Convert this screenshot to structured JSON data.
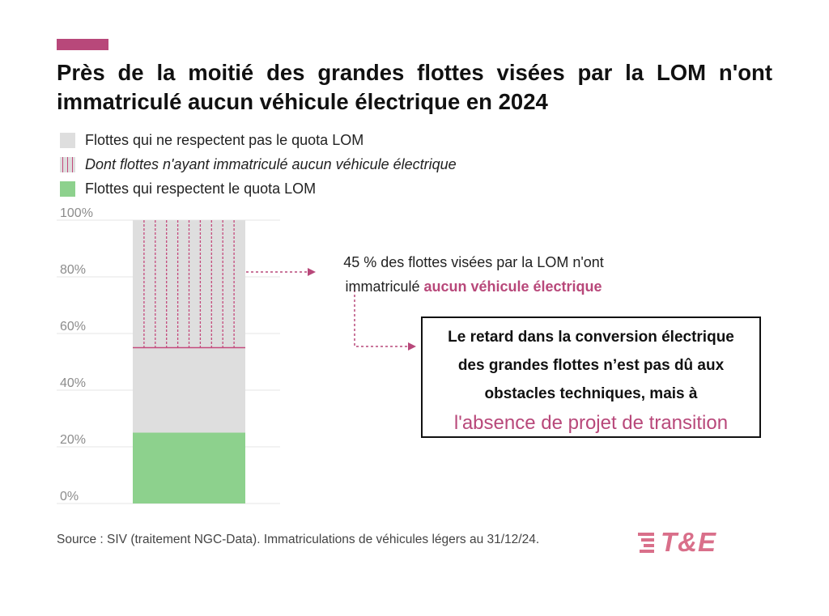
{
  "title": "Près de la moitié des grandes flottes visées par la LOM n'ont immatriculé aucun véhicule électrique en 2024",
  "legend": [
    {
      "label": "Flottes qui ne respectent pas le quota LOM",
      "style": "grey"
    },
    {
      "label": "Dont flottes n'ayant immatriculé aucun véhicule électrique",
      "style": "hatch"
    },
    {
      "label": "Flottes qui respectent le quota LOM",
      "style": "green"
    }
  ],
  "colors": {
    "grey": "#dedede",
    "green": "#8dd18d",
    "pink": "#b8487a",
    "hatch": "#c44a7c",
    "grid": "#e4e4e4",
    "tick": "#8c8c8c"
  },
  "annotation": {
    "line1": "45 % des flottes visées par la LOM n'ont",
    "line2_prefix": "immatriculé ",
    "line2_highlight": "aucun véhicule électrique"
  },
  "callout": {
    "line1": "Le retard dans la conversion électrique",
    "line2": "des grandes flottes n’est pas dû aux",
    "line3": "obstacles techniques, mais à",
    "highlight": "l'absence de projet de transition"
  },
  "source": "Source : SIV (traitement NGC-Data). Immatriculations de véhicules légers au 31/12/24.",
  "logo": {
    "text": "T&E",
    "icon": "speed-lines-icon"
  },
  "chart_data": {
    "type": "bar",
    "stacked": true,
    "categories": [
      ""
    ],
    "series": [
      {
        "name": "Flottes qui respectent le quota LOM",
        "values": [
          25
        ],
        "color": "#8dd18d"
      },
      {
        "name": "Flottes qui ne respectent pas le quota LOM",
        "values": [
          30
        ],
        "color": "#dedede"
      },
      {
        "name": "Dont flottes n'ayant immatriculé aucun véhicule électrique",
        "values": [
          45
        ],
        "color": "#dedede",
        "pattern": "hatch"
      }
    ],
    "ylim": [
      0,
      100
    ],
    "yticks": [
      0,
      20,
      40,
      60,
      80,
      100
    ],
    "ytick_labels": [
      "0%",
      "20%",
      "40%",
      "60%",
      "80%",
      "100%"
    ],
    "grid": true,
    "legend_position": "top-left"
  }
}
